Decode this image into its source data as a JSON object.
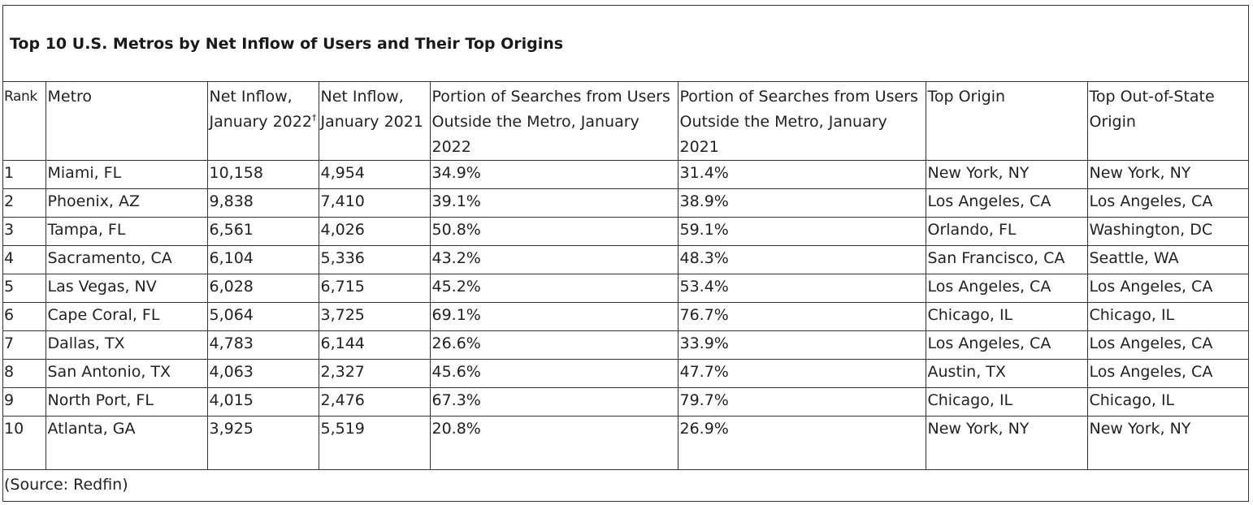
{
  "title": "Top 10 U.S. Metros by Net Inflow of Users and Their Top Origins",
  "columns": {
    "rank": "Rank",
    "metro": "Metro",
    "net_inflow_2022": "Net Inflow, January 2022",
    "net_inflow_2022_note": "†",
    "net_inflow_2021": "Net Inflow, January 2021",
    "portion_2022": "Portion of Searches from Users Outside the Metro, January 2022",
    "portion_2021": "Portion of Searches from Users Outside the Metro, January 2021",
    "top_origin": "Top Origin",
    "top_out_of_state": "Top Out-of-State Origin"
  },
  "rows": [
    {
      "rank": "1",
      "metro": "Miami, FL",
      "inflow_2022": "10,158",
      "inflow_2021": "4,954",
      "portion_2022": "34.9%",
      "portion_2021": "31.4%",
      "top_origin": "New York, NY",
      "top_out_of_state": "New York, NY"
    },
    {
      "rank": "2",
      "metro": "Phoenix, AZ",
      "inflow_2022": "9,838",
      "inflow_2021": "7,410",
      "portion_2022": "39.1%",
      "portion_2021": "38.9%",
      "top_origin": "Los Angeles, CA",
      "top_out_of_state": "Los Angeles, CA"
    },
    {
      "rank": "3",
      "metro": "Tampa, FL",
      "inflow_2022": "6,561",
      "inflow_2021": "4,026",
      "portion_2022": "50.8%",
      "portion_2021": "59.1%",
      "top_origin": "Orlando, FL",
      "top_out_of_state": "Washington, DC"
    },
    {
      "rank": "4",
      "metro": "Sacramento, CA",
      "inflow_2022": "6,104",
      "inflow_2021": "5,336",
      "portion_2022": "43.2%",
      "portion_2021": "48.3%",
      "top_origin": "San Francisco, CA",
      "top_out_of_state": "Seattle, WA"
    },
    {
      "rank": "5",
      "metro": "Las Vegas, NV",
      "inflow_2022": "6,028",
      "inflow_2021": "6,715",
      "portion_2022": "45.2%",
      "portion_2021": "53.4%",
      "top_origin": "Los Angeles, CA",
      "top_out_of_state": "Los Angeles, CA"
    },
    {
      "rank": "6",
      "metro": "Cape Coral, FL",
      "inflow_2022": "5,064",
      "inflow_2021": "3,725",
      "portion_2022": "69.1%",
      "portion_2021": "76.7%",
      "top_origin": "Chicago, IL",
      "top_out_of_state": "Chicago, IL"
    },
    {
      "rank": "7",
      "metro": "Dallas, TX",
      "inflow_2022": "4,783",
      "inflow_2021": "6,144",
      "portion_2022": "26.6%",
      "portion_2021": "33.9%",
      "top_origin": "Los Angeles, CA",
      "top_out_of_state": "Los Angeles, CA"
    },
    {
      "rank": "8",
      "metro": "San Antonio, TX",
      "inflow_2022": "4,063",
      "inflow_2021": "2,327",
      "portion_2022": "45.6%",
      "portion_2021": "47.7%",
      "top_origin": "Austin, TX",
      "top_out_of_state": "Los Angeles, CA"
    },
    {
      "rank": "9",
      "metro": "North Port, FL",
      "inflow_2022": "4,015",
      "inflow_2021": "2,476",
      "portion_2022": "67.3%",
      "portion_2021": "79.7%",
      "top_origin": "Chicago, IL",
      "top_out_of_state": "Chicago, IL"
    },
    {
      "rank": "10",
      "metro": "Atlanta, GA",
      "inflow_2022": "3,925",
      "inflow_2021": "5,519",
      "portion_2022": "20.8%",
      "portion_2021": "26.9%",
      "top_origin": "New York, NY",
      "top_out_of_state": "New York, NY"
    }
  ],
  "source": "(Source: Redfin)"
}
